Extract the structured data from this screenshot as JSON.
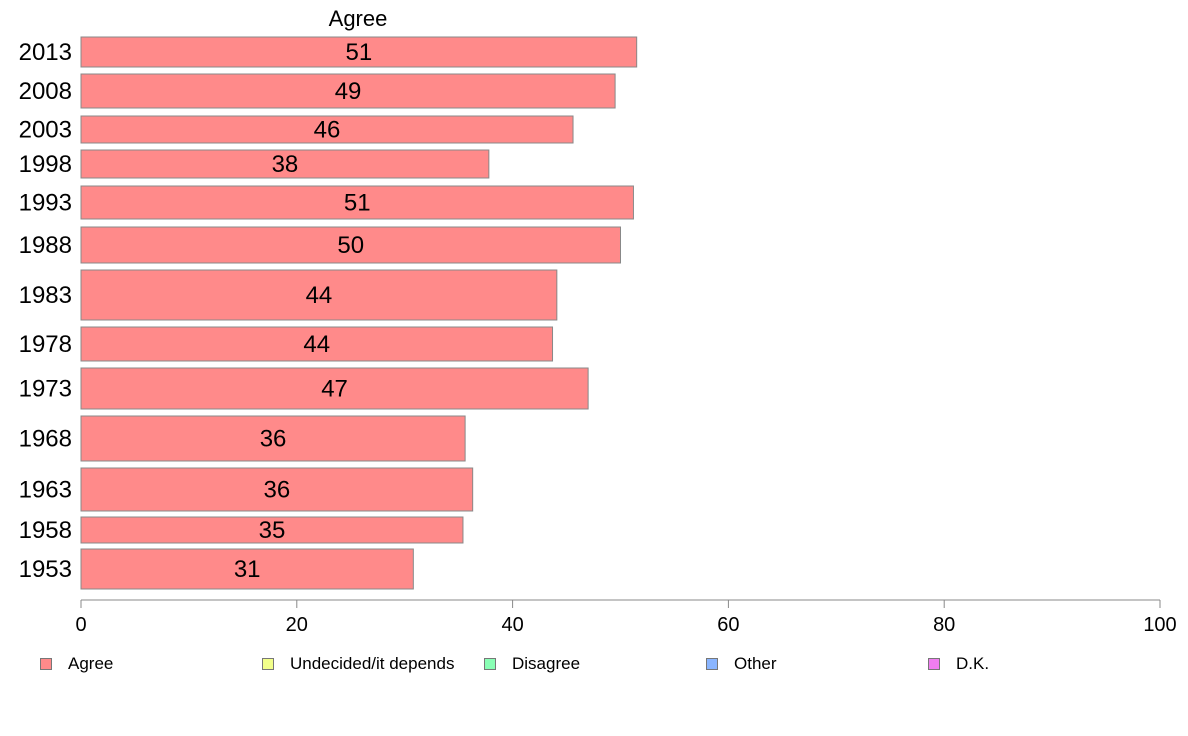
{
  "chart_data": {
    "type": "bar",
    "orientation": "horizontal",
    "title": "Agree",
    "categories": [
      "2013",
      "2008",
      "2003",
      "1998",
      "1993",
      "1988",
      "1983",
      "1978",
      "1973",
      "1968",
      "1963",
      "1958",
      "1953"
    ],
    "series": [
      {
        "name": "Agree",
        "values": [
          51.5,
          49.5,
          45.6,
          37.8,
          51.2,
          50.0,
          44.1,
          43.7,
          47.0,
          35.6,
          36.3,
          35.4,
          30.8
        ],
        "labels": [
          "51",
          "49",
          "46",
          "38",
          "51",
          "50",
          "44",
          "44",
          "47",
          "36",
          "36",
          "35",
          "31"
        ]
      }
    ],
    "xlim": [
      0,
      100
    ],
    "xticks": [
      "0",
      "20",
      "40",
      "60",
      "80",
      "100"
    ],
    "grid": false,
    "legend_position": "bottom",
    "legend": [
      {
        "label": "Agree",
        "color": "#ff8a8a"
      },
      {
        "label": "Undecided/it depends",
        "color": "#f2ff8a"
      },
      {
        "label": "Disagree",
        "color": "#8affb5"
      },
      {
        "label": "Other",
        "color": "#8ab5ff"
      },
      {
        "label": "D.K.",
        "color": "#f07df0"
      }
    ]
  }
}
